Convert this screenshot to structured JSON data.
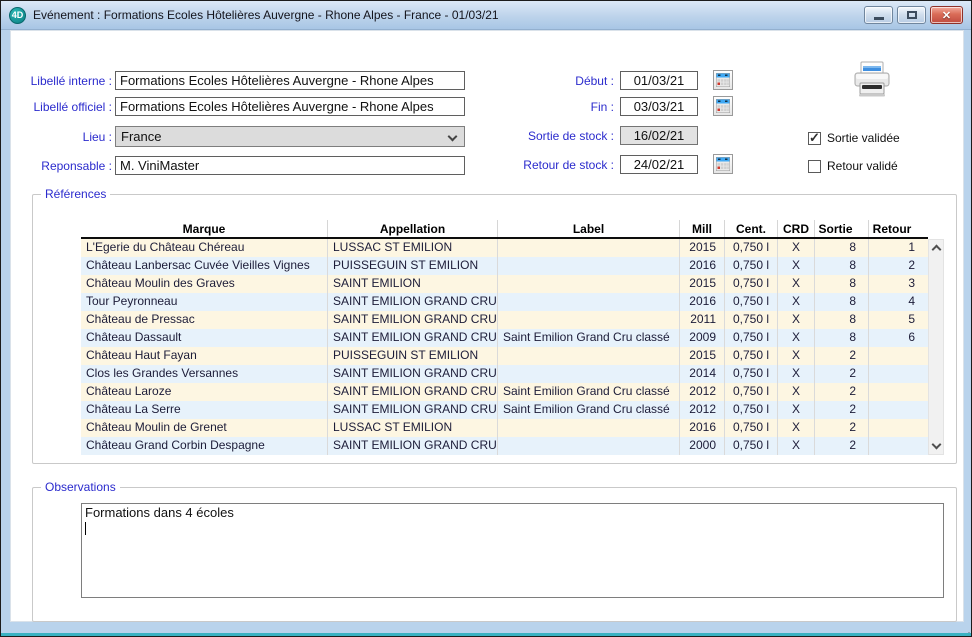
{
  "window": {
    "title": "Evénement : Formations Ecoles Hôtelières Auvergne - Rhone Alpes - France - 01/03/21",
    "app_icon_text": "4D",
    "controls": {
      "close_glyph": "✕"
    }
  },
  "form": {
    "fields_left": [
      {
        "label": "Libellé interne :",
        "value": "Formations Ecoles Hôtelières Auvergne - Rhone Alpes"
      },
      {
        "label": "Libellé officiel :",
        "value": "Formations Ecoles Hôtelières Auvergne - Rhone Alpes"
      },
      {
        "label": "Lieu :",
        "value": "France"
      },
      {
        "label": "Reponsable :",
        "value": "M. ViniMaster"
      }
    ],
    "fields_right": [
      {
        "label": "Début :",
        "value": "01/03/21"
      },
      {
        "label": "Fin :",
        "value": "03/03/21"
      },
      {
        "label": "Sortie de stock :",
        "value": "16/02/21"
      },
      {
        "label": "Retour de stock :",
        "value": "24/02/21"
      }
    ],
    "checkboxes": [
      {
        "label": "Sortie validée",
        "checked": true
      },
      {
        "label": "Retour validé",
        "checked": false
      }
    ]
  },
  "references": {
    "group_label": "Références",
    "columns": [
      "Marque",
      "Appellation",
      "Label",
      "Mill",
      "Cent.",
      "CRD",
      "Sortie",
      "Retour"
    ],
    "rows": [
      [
        "L'Egerie du Château Chéreau",
        "LUSSAC ST EMILION",
        "",
        "2015",
        "0,750 l",
        "X",
        "8",
        "1"
      ],
      [
        "Château Lanbersac Cuvée Vieilles Vignes",
        "PUISSEGUIN ST EMILION",
        "",
        "2016",
        "0,750 l",
        "X",
        "8",
        "2"
      ],
      [
        "Château Moulin des Graves",
        "SAINT EMILION",
        "",
        "2015",
        "0,750 l",
        "X",
        "8",
        "3"
      ],
      [
        "Tour Peyronneau",
        "SAINT EMILION GRAND CRU",
        "",
        "2016",
        "0,750 l",
        "X",
        "8",
        "4"
      ],
      [
        "Château de Pressac",
        "SAINT EMILION GRAND CRU",
        "",
        "2011",
        "0,750 l",
        "X",
        "8",
        "5"
      ],
      [
        "Château Dassault",
        "SAINT EMILION GRAND CRU",
        "Saint Emilion Grand Cru classé",
        "2009",
        "0,750 l",
        "X",
        "8",
        "6"
      ],
      [
        "Château Haut Fayan",
        "PUISSEGUIN ST EMILION",
        "",
        "2015",
        "0,750 l",
        "X",
        "2",
        ""
      ],
      [
        "Clos les Grandes Versannes",
        "SAINT EMILION GRAND CRU",
        "",
        "2014",
        "0,750 l",
        "X",
        "2",
        ""
      ],
      [
        "Château Laroze",
        "SAINT EMILION GRAND CRU",
        "Saint Emilion Grand Cru classé",
        "2012",
        "0,750 l",
        "X",
        "2",
        ""
      ],
      [
        "Château La Serre",
        "SAINT EMILION GRAND CRU",
        "Saint Emilion Grand Cru classé",
        "2012",
        "0,750 l",
        "X",
        "2",
        ""
      ],
      [
        "Château Moulin de Grenet",
        "LUSSAC ST EMILION",
        "",
        "2016",
        "0,750 l",
        "X",
        "2",
        ""
      ],
      [
        "Château Grand Corbin Despagne",
        "SAINT EMILION GRAND CRU",
        "",
        "2000",
        "0,750 l",
        "X",
        "2",
        ""
      ]
    ]
  },
  "observations": {
    "group_label": "Observations",
    "text": "Formations dans 4 écoles"
  },
  "colors": {
    "label_blue": "#2b2bcd",
    "row_cream": "#fdf6e2",
    "row_blue": "#e7f2fb",
    "titlebar_top": "#dce9f7",
    "titlebar_bottom": "#a8c6e5",
    "close_red": "#c04b3f",
    "frame_blue": "#b9d3ec",
    "bottom_strip_teal": "#3ab2c2"
  }
}
